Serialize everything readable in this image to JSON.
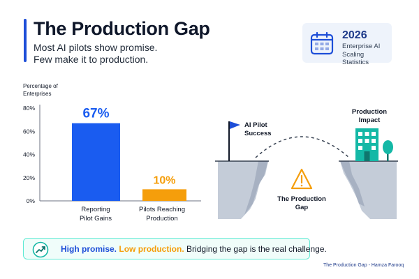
{
  "header": {
    "title": "The Production Gap",
    "subtitle_line1": "Most AI pilots show promise.",
    "subtitle_line2": "Few make it to production."
  },
  "stat_card": {
    "year": "2026",
    "label_line1": "Enterprise AI",
    "label_line2": "Scaling Statistics",
    "icon": "calendar-icon"
  },
  "chart_data": {
    "type": "bar",
    "ylabel_line1": "Percentage of",
    "ylabel_line2": "Enterprises",
    "yticks": [
      "0%",
      "20%",
      "40%",
      "60%",
      "80%"
    ],
    "ytick_values": [
      0,
      20,
      40,
      60,
      80
    ],
    "ylim": [
      0,
      80
    ],
    "categories": [
      [
        "Reporting",
        "Pilot Gains"
      ],
      [
        "Pilots Reaching",
        "Production"
      ]
    ],
    "values": [
      67,
      10
    ],
    "data_labels": [
      "67%",
      "10%"
    ],
    "colors": [
      "#1a5cf0",
      "#f59e0b"
    ],
    "grid": false
  },
  "illustration": {
    "left_flag_label_line1": "AI Pilot",
    "left_flag_label_line2": "Success",
    "right_label_line1": "Production",
    "right_label_line2": "Impact",
    "gap_label_line1": "The Production",
    "gap_label_line2": "Gap",
    "icons": [
      "flag-icon",
      "warning-icon",
      "building-icon",
      "tree-icon"
    ]
  },
  "callout": {
    "part1": "High promise.",
    "part2": "Low production.",
    "part3": "Bridging the gap is the real challenge.",
    "icon": "trend-up-icon"
  },
  "footer": {
    "credit": "The Production Gap - Hamza Farooq"
  },
  "colors": {
    "accent": "#1d4ed8",
    "orange": "#f59e0b",
    "teal": "#14b8a6",
    "cliff": "#c4ccd8"
  }
}
